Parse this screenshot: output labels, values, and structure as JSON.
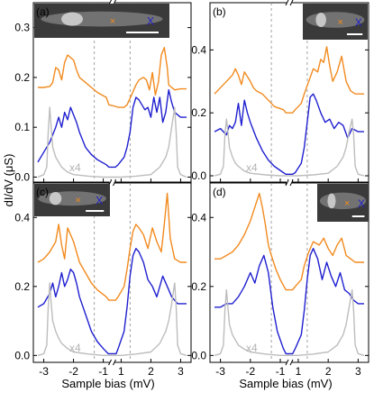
{
  "chart_data": {
    "type": "line",
    "ylabel": "dI/dV (μS)",
    "xlabel": "Sample bias (mV)",
    "x_ticks": [
      "-3",
      "-2",
      "-1",
      "1",
      "2",
      "3"
    ],
    "scale_note": "x4",
    "colors": {
      "orange": "#f28a1e",
      "blue": "#1f1fd0",
      "gray": "#bdbdbd",
      "dashed": "#8c8c8c"
    },
    "panels": [
      {
        "label": "(a)",
        "y_ticks": [
          "0.0",
          "0.1",
          "0.2",
          "0.3"
        ],
        "ylim": [
          -0.01,
          0.35
        ],
        "inset_marks": [
          "×",
          "X"
        ],
        "series": [
          {
            "color": "orange",
            "x": [
              -3.2,
              -3.0,
              -2.8,
              -2.7,
              -2.6,
              -2.5,
              -2.4,
              -2.3,
              -2.2,
              -2.1,
              -2.0,
              -1.9,
              -1.8,
              -1.6,
              -1.4,
              -1.2,
              -0.9,
              -0.5,
              0.5,
              0.9,
              1.1,
              1.2,
              1.35,
              1.5,
              1.6,
              1.75,
              1.85,
              1.95,
              2.05,
              2.15,
              2.25,
              2.35,
              2.45,
              2.55,
              2.6,
              2.7,
              2.8,
              3.0,
              3.2
            ],
            "y": [
              0.18,
              0.18,
              0.182,
              0.19,
              0.22,
              0.215,
              0.195,
              0.23,
              0.245,
              0.24,
              0.235,
              0.215,
              0.2,
              0.19,
              0.18,
              0.17,
              0.16,
              0.145,
              0.142,
              0.14,
              0.14,
              0.145,
              0.165,
              0.185,
              0.195,
              0.2,
              0.195,
              0.175,
              0.21,
              0.165,
              0.19,
              0.245,
              0.26,
              0.22,
              0.185,
              0.18,
              0.175,
              0.177,
              0.177
            ]
          },
          {
            "color": "blue",
            "x": [
              -3.2,
              -3.0,
              -2.8,
              -2.6,
              -2.5,
              -2.4,
              -2.3,
              -2.2,
              -2.1,
              -2.0,
              -1.9,
              -1.8,
              -1.6,
              -1.4,
              -1.2,
              -0.9,
              -0.5,
              0.5,
              0.9,
              1.1,
              1.2,
              1.3,
              1.4,
              1.5,
              1.6,
              1.7,
              1.8,
              1.9,
              2.0,
              2.1,
              2.2,
              2.3,
              2.4,
              2.5,
              2.6,
              2.7,
              2.8,
              3.0,
              3.2
            ],
            "y": [
              0.03,
              0.05,
              0.07,
              0.1,
              0.12,
              0.1,
              0.13,
              0.115,
              0.14,
              0.125,
              0.11,
              0.09,
              0.06,
              0.045,
              0.035,
              0.025,
              0.02,
              0.02,
              0.025,
              0.04,
              0.06,
              0.09,
              0.14,
              0.16,
              0.155,
              0.145,
              0.135,
              0.14,
              0.12,
              0.16,
              0.13,
              0.16,
              0.11,
              0.13,
              0.175,
              0.15,
              0.13,
              0.12,
              0.12
            ]
          },
          {
            "color": "gray",
            "x": [
              -3.2,
              -3.0,
              -2.9,
              -2.85,
              -2.8,
              -2.75,
              -2.7,
              -2.6,
              -2.5,
              -2.4,
              -2.2,
              -2.0,
              -1.5,
              -1.0,
              1.0,
              1.5,
              2.0,
              2.3,
              2.5,
              2.6,
              2.7,
              2.8,
              2.85,
              2.9,
              3.0,
              3.2
            ],
            "y": [
              0.0,
              0.005,
              0.02,
              0.09,
              0.14,
              0.1,
              0.06,
              0.04,
              0.03,
              0.02,
              0.01,
              0.005,
              0.002,
              0.0,
              0.0,
              0.002,
              0.005,
              0.02,
              0.04,
              0.06,
              0.1,
              0.14,
              0.09,
              0.02,
              0.005,
              0.0
            ]
          }
        ]
      },
      {
        "label": "(b)",
        "y_ticks": [
          "0.0",
          "0.2",
          "0.4"
        ],
        "ylim": [
          -0.02,
          0.55
        ],
        "inset_marks": [
          "×",
          "X"
        ],
        "series": [
          {
            "color": "orange",
            "x": [
              -3.2,
              -3.0,
              -2.8,
              -2.6,
              -2.5,
              -2.4,
              -2.3,
              -2.2,
              -2.1,
              -2.0,
              -1.9,
              -1.8,
              -1.6,
              -1.4,
              -1.2,
              -0.9,
              -0.5,
              0.5,
              0.9,
              1.1,
              1.2,
              1.35,
              1.5,
              1.65,
              1.75,
              1.85,
              1.95,
              2.05,
              2.15,
              2.3,
              2.45,
              2.6,
              2.75,
              2.9,
              3.2
            ],
            "y": [
              0.26,
              0.28,
              0.3,
              0.32,
              0.34,
              0.32,
              0.29,
              0.33,
              0.315,
              0.3,
              0.28,
              0.27,
              0.26,
              0.24,
              0.22,
              0.21,
              0.2,
              0.2,
              0.21,
              0.23,
              0.26,
              0.3,
              0.34,
              0.33,
              0.37,
              0.36,
              0.41,
              0.35,
              0.3,
              0.33,
              0.38,
              0.3,
              0.27,
              0.26,
              0.26
            ]
          },
          {
            "color": "blue",
            "x": [
              -3.2,
              -3.0,
              -2.8,
              -2.7,
              -2.6,
              -2.5,
              -2.4,
              -2.3,
              -2.2,
              -2.1,
              -2.0,
              -1.8,
              -1.6,
              -1.4,
              -1.2,
              -0.9,
              -0.5,
              0.5,
              0.9,
              1.1,
              1.2,
              1.3,
              1.4,
              1.5,
              1.6,
              1.75,
              1.9,
              2.05,
              2.2,
              2.35,
              2.5,
              2.65,
              2.8,
              3.0,
              3.2
            ],
            "y": [
              0.14,
              0.15,
              0.13,
              0.16,
              0.15,
              0.17,
              0.23,
              0.16,
              0.24,
              0.2,
              0.17,
              0.12,
              0.08,
              0.05,
              0.03,
              0.01,
              0.005,
              0.005,
              0.01,
              0.04,
              0.09,
              0.17,
              0.25,
              0.26,
              0.24,
              0.2,
              0.17,
              0.18,
              0.15,
              0.17,
              0.16,
              0.12,
              0.15,
              0.14,
              0.14
            ]
          },
          {
            "color": "gray",
            "x": [
              -3.2,
              -3.0,
              -2.9,
              -2.85,
              -2.8,
              -2.75,
              -2.7,
              -2.6,
              -2.5,
              -2.4,
              -2.2,
              -2.0,
              -1.5,
              -1.0,
              1.0,
              1.5,
              2.0,
              2.3,
              2.5,
              2.6,
              2.7,
              2.8,
              2.85,
              2.9,
              3.0,
              3.2
            ],
            "y": [
              0.0,
              0.005,
              0.03,
              0.13,
              0.18,
              0.14,
              0.09,
              0.06,
              0.04,
              0.03,
              0.015,
              0.008,
              0.003,
              0.0,
              0.0,
              0.003,
              0.008,
              0.03,
              0.06,
              0.09,
              0.14,
              0.18,
              0.13,
              0.03,
              0.005,
              0.0
            ]
          }
        ]
      },
      {
        "label": "(c)",
        "y_ticks": [
          "0.0",
          "0.2",
          "0.4"
        ],
        "ylim": [
          -0.02,
          0.5
        ],
        "inset_marks": [
          "×",
          "X"
        ],
        "series": [
          {
            "color": "orange",
            "x": [
              -3.2,
              -3.0,
              -2.8,
              -2.6,
              -2.5,
              -2.4,
              -2.3,
              -2.2,
              -2.1,
              -2.0,
              -1.9,
              -1.8,
              -1.6,
              -1.4,
              -1.2,
              -0.9,
              -0.5,
              0.5,
              0.9,
              1.1,
              1.2,
              1.3,
              1.4,
              1.5,
              1.6,
              1.75,
              1.9,
              2.05,
              2.2,
              2.35,
              2.45,
              2.55,
              2.65,
              2.8,
              3.0,
              3.2
            ],
            "y": [
              0.27,
              0.28,
              0.3,
              0.33,
              0.38,
              0.32,
              0.28,
              0.37,
              0.35,
              0.33,
              0.3,
              0.27,
              0.24,
              0.21,
              0.19,
              0.17,
              0.16,
              0.16,
              0.17,
              0.2,
              0.25,
              0.31,
              0.36,
              0.38,
              0.37,
              0.35,
              0.31,
              0.37,
              0.33,
              0.3,
              0.38,
              0.47,
              0.34,
              0.28,
              0.27,
              0.27
            ]
          },
          {
            "color": "blue",
            "x": [
              -3.2,
              -3.0,
              -2.8,
              -2.7,
              -2.6,
              -2.5,
              -2.4,
              -2.3,
              -2.2,
              -2.1,
              -2.0,
              -1.9,
              -1.8,
              -1.6,
              -1.4,
              -1.2,
              -1.0,
              -0.6,
              0.6,
              0.9,
              1.1,
              1.2,
              1.3,
              1.4,
              1.5,
              1.6,
              1.75,
              1.9,
              2.05,
              2.2,
              2.4,
              2.55,
              2.7,
              2.9,
              3.2
            ],
            "y": [
              0.14,
              0.15,
              0.18,
              0.21,
              0.17,
              0.2,
              0.24,
              0.2,
              0.22,
              0.25,
              0.24,
              0.21,
              0.17,
              0.12,
              0.07,
              0.04,
              0.02,
              0.005,
              0.005,
              0.02,
              0.07,
              0.14,
              0.23,
              0.29,
              0.31,
              0.3,
              0.27,
              0.22,
              0.2,
              0.17,
              0.23,
              0.2,
              0.17,
              0.15,
              0.15
            ]
          },
          {
            "color": "gray",
            "x": [
              -3.2,
              -3.0,
              -2.9,
              -2.85,
              -2.8,
              -2.75,
              -2.7,
              -2.6,
              -2.5,
              -2.4,
              -2.2,
              -2.0,
              -1.5,
              -1.0,
              1.0,
              1.5,
              2.0,
              2.3,
              2.5,
              2.6,
              2.7,
              2.8,
              2.85,
              2.9,
              3.0,
              3.2
            ],
            "y": [
              0.0,
              0.005,
              0.03,
              0.14,
              0.21,
              0.15,
              0.1,
              0.07,
              0.05,
              0.035,
              0.02,
              0.01,
              0.004,
              0.0,
              0.0,
              0.004,
              0.01,
              0.035,
              0.07,
              0.1,
              0.15,
              0.21,
              0.14,
              0.03,
              0.005,
              0.0
            ]
          }
        ]
      },
      {
        "label": "(d)",
        "y_ticks": [
          "0.0",
          "0.2",
          "0.4"
        ],
        "ylim": [
          -0.02,
          0.5
        ],
        "inset_marks": [
          "×",
          "X"
        ],
        "series": [
          {
            "color": "orange",
            "x": [
              -3.2,
              -3.0,
              -2.8,
              -2.6,
              -2.4,
              -2.2,
              -2.0,
              -1.85,
              -1.7,
              -1.6,
              -1.5,
              -1.4,
              -1.3,
              -1.15,
              -1.0,
              -0.8,
              -0.5,
              0.5,
              0.9,
              1.1,
              1.2,
              1.35,
              1.5,
              1.7,
              1.85,
              2.0,
              2.15,
              2.3,
              2.45,
              2.6,
              2.75,
              2.9,
              3.2
            ],
            "y": [
              0.28,
              0.28,
              0.29,
              0.3,
              0.32,
              0.35,
              0.39,
              0.43,
              0.47,
              0.43,
              0.38,
              0.32,
              0.29,
              0.25,
              0.22,
              0.2,
              0.19,
              0.19,
              0.2,
              0.22,
              0.26,
              0.3,
              0.33,
              0.32,
              0.34,
              0.31,
              0.29,
              0.32,
              0.34,
              0.29,
              0.28,
              0.27,
              0.27
            ]
          },
          {
            "color": "blue",
            "x": [
              -3.2,
              -3.0,
              -2.8,
              -2.6,
              -2.4,
              -2.2,
              -2.0,
              -1.85,
              -1.7,
              -1.55,
              -1.4,
              -1.25,
              -1.1,
              -0.9,
              -0.5,
              0.5,
              0.9,
              1.1,
              1.2,
              1.3,
              1.4,
              1.5,
              1.65,
              1.8,
              1.95,
              2.1,
              2.25,
              2.4,
              2.55,
              2.7,
              2.85,
              3.0,
              3.2
            ],
            "y": [
              0.14,
              0.14,
              0.15,
              0.15,
              0.17,
              0.2,
              0.24,
              0.21,
              0.26,
              0.29,
              0.24,
              0.14,
              0.07,
              0.02,
              0.005,
              0.005,
              0.02,
              0.06,
              0.13,
              0.22,
              0.29,
              0.31,
              0.28,
              0.22,
              0.27,
              0.23,
              0.2,
              0.24,
              0.19,
              0.18,
              0.16,
              0.15,
              0.15
            ]
          },
          {
            "color": "gray",
            "x": [
              -3.2,
              -3.0,
              -2.9,
              -2.85,
              -2.8,
              -2.75,
              -2.7,
              -2.6,
              -2.5,
              -2.4,
              -2.2,
              -2.0,
              -1.5,
              -1.0,
              1.0,
              1.5,
              2.0,
              2.3,
              2.5,
              2.6,
              2.7,
              2.8,
              2.85,
              2.9,
              3.0,
              3.2
            ],
            "y": [
              0.0,
              0.005,
              0.03,
              0.13,
              0.19,
              0.14,
              0.09,
              0.06,
              0.045,
              0.03,
              0.018,
              0.01,
              0.004,
              0.0,
              0.0,
              0.004,
              0.01,
              0.03,
              0.06,
              0.09,
              0.14,
              0.19,
              0.13,
              0.03,
              0.005,
              0.0
            ]
          }
        ]
      }
    ]
  }
}
